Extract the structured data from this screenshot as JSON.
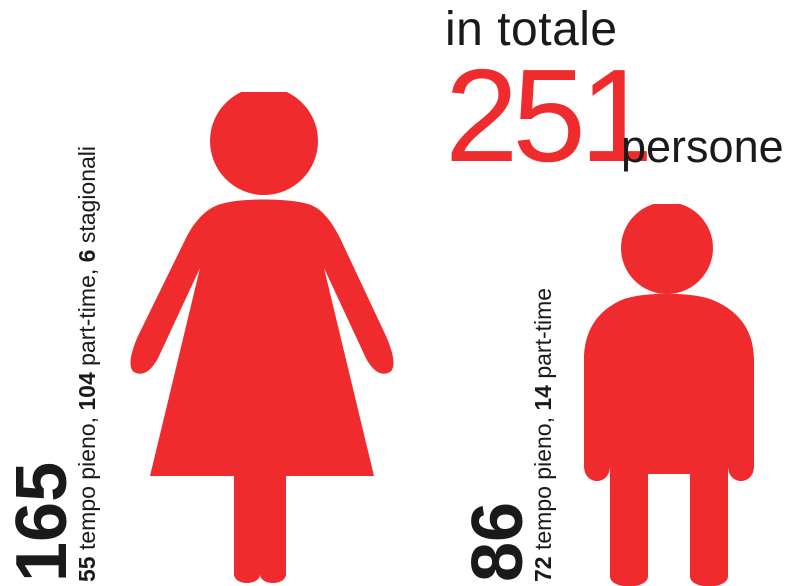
{
  "headline": {
    "intro": "in totale",
    "total": "251",
    "unit": "persone"
  },
  "colors": {
    "accent": "#ef2b2d",
    "text": "#1a1a1a"
  },
  "groups": [
    {
      "icon": "woman-icon",
      "total": "165",
      "breakdown": [
        {
          "value": "55",
          "label": " tempo pieno, "
        },
        {
          "value": "104",
          "label": " part-time, "
        },
        {
          "value": "6",
          "label": " stagionali"
        }
      ]
    },
    {
      "icon": "man-icon",
      "total": "86",
      "breakdown": [
        {
          "value": "72",
          "label": " tempo pieno, "
        },
        {
          "value": "14",
          "label": " part-time"
        }
      ]
    }
  ],
  "chart_data": {
    "type": "bar",
    "title": "in totale 251 persone",
    "total": 251,
    "unit": "persone",
    "categories": [
      "165",
      "86"
    ],
    "values": [
      165,
      86
    ],
    "series": [
      {
        "name": "tempo pieno",
        "values": [
          55,
          72
        ]
      },
      {
        "name": "part-time",
        "values": [
          104,
          14
        ]
      },
      {
        "name": "stagionali",
        "values": [
          6,
          0
        ]
      }
    ]
  }
}
